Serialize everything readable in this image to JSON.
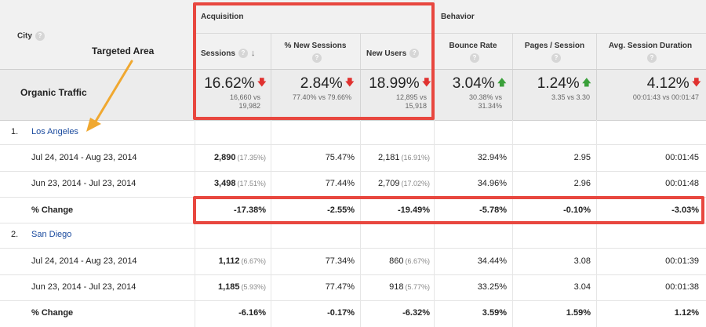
{
  "header": {
    "city_label": "City",
    "acquisition_label": "Acquisition",
    "behavior_label": "Behavior",
    "columns": [
      {
        "label": "Sessions"
      },
      {
        "label": "% New Sessions"
      },
      {
        "label": "New Users"
      },
      {
        "label": "Bounce Rate"
      },
      {
        "label": "Pages / Session"
      },
      {
        "label": "Avg. Session Duration"
      }
    ]
  },
  "annotation": {
    "targeted_area": "Targeted Area",
    "colors": {
      "highlight": "#e8473f",
      "arrow": "#f0a830"
    }
  },
  "summary": {
    "label": "Organic Traffic",
    "sessions": {
      "main": "16.62%",
      "sub1": "16,660 vs",
      "sub2": "19,982",
      "trend": "down"
    },
    "new_sessions": {
      "main": "2.84%",
      "sub1": "77.40% vs 79.66%",
      "sub2": "",
      "trend": "down"
    },
    "new_users": {
      "main": "18.99%",
      "sub1": "12,895 vs",
      "sub2": "15,918",
      "trend": "down"
    },
    "bounce_rate": {
      "main": "3.04%",
      "sub1": "30.38% vs",
      "sub2": "31.34%",
      "trend": "up"
    },
    "pages_session": {
      "main": "1.24%",
      "sub1": "3.35 vs 3.30",
      "sub2": "",
      "trend": "up"
    },
    "avg_duration": {
      "main": "4.12%",
      "sub1": "00:01:43 vs 00:01:47",
      "sub2": "",
      "trend": "down"
    }
  },
  "cities": [
    {
      "num": "1.",
      "name": "Los Angeles",
      "rows": [
        {
          "label": "Jul 24, 2014 - Aug 23, 2014",
          "sessions": "2,890",
          "sessions_pct": "(17.35%)",
          "new_sessions": "75.47%",
          "new_users": "2,181",
          "new_users_pct": "(16.91%)",
          "bounce": "32.94%",
          "pages": "2.95",
          "duration": "00:01:45"
        },
        {
          "label": "Jun 23, 2014 - Jul 23, 2014",
          "sessions": "3,498",
          "sessions_pct": "(17.51%)",
          "new_sessions": "77.44%",
          "new_users": "2,709",
          "new_users_pct": "(17.02%)",
          "bounce": "34.96%",
          "pages": "2.96",
          "duration": "00:01:48"
        }
      ],
      "change": {
        "label": "% Change",
        "sessions": "-17.38%",
        "new_sessions": "-2.55%",
        "new_users": "-19.49%",
        "bounce": "-5.78%",
        "pages": "-0.10%",
        "duration": "-3.03%"
      }
    },
    {
      "num": "2.",
      "name": "San Diego",
      "rows": [
        {
          "label": "Jul 24, 2014 - Aug 23, 2014",
          "sessions": "1,112",
          "sessions_pct": "(6.67%)",
          "new_sessions": "77.34%",
          "new_users": "860",
          "new_users_pct": "(6.67%)",
          "bounce": "34.44%",
          "pages": "3.08",
          "duration": "00:01:39"
        },
        {
          "label": "Jun 23, 2014 - Jul 23, 2014",
          "sessions": "1,185",
          "sessions_pct": "(5.93%)",
          "new_sessions": "77.47%",
          "new_users": "918",
          "new_users_pct": "(5.77%)",
          "bounce": "33.25%",
          "pages": "3.04",
          "duration": "00:01:38"
        }
      ],
      "change": {
        "label": "% Change",
        "sessions": "-6.16%",
        "new_sessions": "-0.17%",
        "new_users": "-6.32%",
        "bounce": "3.59%",
        "pages": "1.59%",
        "duration": "1.12%"
      }
    }
  ]
}
